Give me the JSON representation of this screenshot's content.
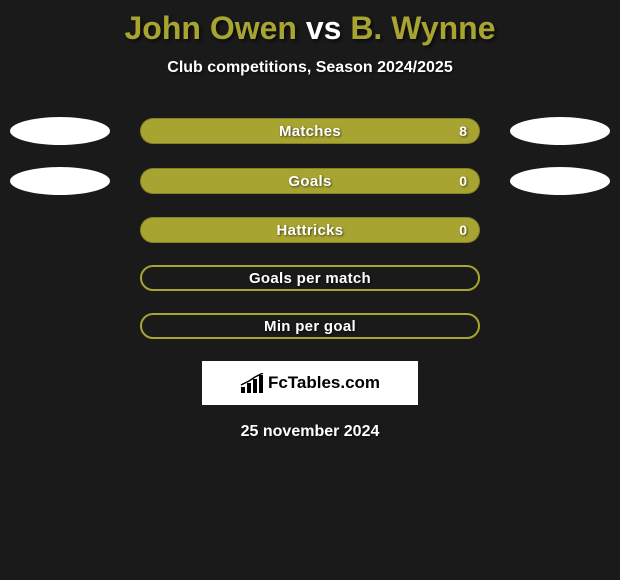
{
  "title": {
    "player1": "John Owen",
    "vs": " vs ",
    "player2": "B. Wynne",
    "player1_color": "#a8a431",
    "vs_color": "#ffffff",
    "player2_color": "#a8a431"
  },
  "subtitle": "Club competitions, Season 2024/2025",
  "bar_color": "#a8a431",
  "ellipse_color": "#ffffff",
  "background_color": "#1a1a1a",
  "rows": [
    {
      "label": "Matches",
      "value": "8",
      "filled": true,
      "left_ellipse": true,
      "right_ellipse": true
    },
    {
      "label": "Goals",
      "value": "0",
      "filled": true,
      "left_ellipse": true,
      "right_ellipse": true
    },
    {
      "label": "Hattricks",
      "value": "0",
      "filled": true,
      "left_ellipse": false,
      "right_ellipse": false
    },
    {
      "label": "Goals per match",
      "value": "",
      "filled": false,
      "left_ellipse": false,
      "right_ellipse": false
    },
    {
      "label": "Min per goal",
      "value": "",
      "filled": false,
      "left_ellipse": false,
      "right_ellipse": false
    }
  ],
  "logo_text": "FcTables.com",
  "date": "25 november 2024"
}
